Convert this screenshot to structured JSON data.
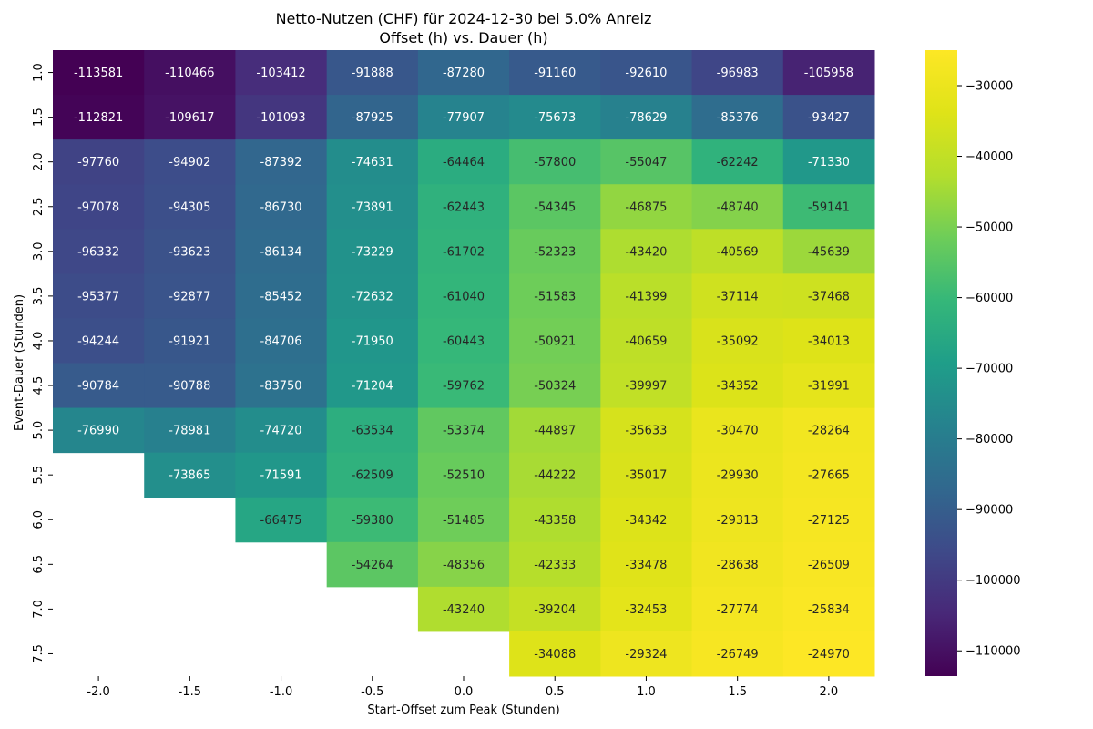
{
  "chart_data": {
    "type": "heatmap",
    "title_line1": "Netto-Nutzen (CHF) für 2024-12-30 bei 5.0% Anreiz",
    "title_line2": "Offset (h) vs. Dauer (h)",
    "xlabel": "Start-Offset zum Peak (Stunden)",
    "ylabel": "Event-Dauer (Stunden)",
    "x_labels": [
      "-2.0",
      "-1.5",
      "-1.0",
      "-0.5",
      "0.0",
      "0.5",
      "1.0",
      "1.5",
      "2.0"
    ],
    "y_labels": [
      "1.0",
      "1.5",
      "2.0",
      "2.5",
      "3.0",
      "3.5",
      "4.0",
      "4.5",
      "5.0",
      "5.5",
      "6.0",
      "6.5",
      "7.0",
      "7.5"
    ],
    "values": [
      [
        -113581,
        -110466,
        -103412,
        -91888,
        -87280,
        -91160,
        -92610,
        -96983,
        -105958
      ],
      [
        -112821,
        -109617,
        -101093,
        -87925,
        -77907,
        -75673,
        -78629,
        -85376,
        -93427
      ],
      [
        -97760,
        -94902,
        -87392,
        -74631,
        -64464,
        -57800,
        -55047,
        -62242,
        -71330
      ],
      [
        -97078,
        -94305,
        -86730,
        -73891,
        -62443,
        -54345,
        -46875,
        -48740,
        -59141
      ],
      [
        -96332,
        -93623,
        -86134,
        -73229,
        -61702,
        -52323,
        -43420,
        -40569,
        -45639
      ],
      [
        -95377,
        -92877,
        -85452,
        -72632,
        -61040,
        -51583,
        -41399,
        -37114,
        -37468
      ],
      [
        -94244,
        -91921,
        -84706,
        -71950,
        -60443,
        -50921,
        -40659,
        -35092,
        -34013
      ],
      [
        -90784,
        -90788,
        -83750,
        -71204,
        -59762,
        -50324,
        -39997,
        -34352,
        -31991
      ],
      [
        -76990,
        -78981,
        -74720,
        -63534,
        -53374,
        -44897,
        -35633,
        -30470,
        -28264
      ],
      [
        null,
        -73865,
        -71591,
        -62509,
        -52510,
        -44222,
        -35017,
        -29930,
        -27665
      ],
      [
        null,
        null,
        -66475,
        -59380,
        -51485,
        -43358,
        -34342,
        -29313,
        -27125
      ],
      [
        null,
        null,
        null,
        -54264,
        -48356,
        -42333,
        -33478,
        -28638,
        -26509
      ],
      [
        null,
        null,
        null,
        null,
        -43240,
        -39204,
        -32453,
        -27774,
        -25834
      ],
      [
        null,
        null,
        null,
        null,
        null,
        -34088,
        -29324,
        -26749,
        -24970
      ]
    ],
    "colormap": "viridis",
    "vmin": -113581,
    "vmax": -24970,
    "colorbar_ticks": [
      -30000,
      -40000,
      -50000,
      -60000,
      -70000,
      -80000,
      -90000,
      -100000,
      -110000
    ],
    "grid": false
  }
}
